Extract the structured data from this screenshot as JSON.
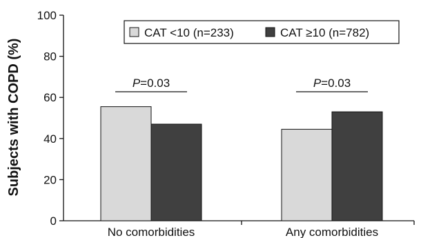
{
  "chart_data": {
    "type": "bar",
    "categories": [
      "No comorbidities",
      "Any comorbidities"
    ],
    "series": [
      {
        "name": "CAT <10 (n=233)",
        "values": [
          55.5,
          44.5
        ],
        "color": "#d9d9d9"
      },
      {
        "name": "CAT ≥10 (n=782)",
        "values": [
          47,
          53
        ],
        "color": "#404040"
      }
    ],
    "xlabel": "",
    "ylabel": "Subjects with COPD (%)",
    "ylim": [
      0,
      100
    ],
    "yticks": [
      0,
      20,
      40,
      60,
      80,
      100
    ],
    "grid": false,
    "legend_position": "top-right",
    "annotations": [
      {
        "category": "No comorbidities",
        "prefix": "P",
        "text": "=0.03"
      },
      {
        "category": "Any comorbidities",
        "prefix": "P",
        "text": "=0.03"
      }
    ]
  }
}
